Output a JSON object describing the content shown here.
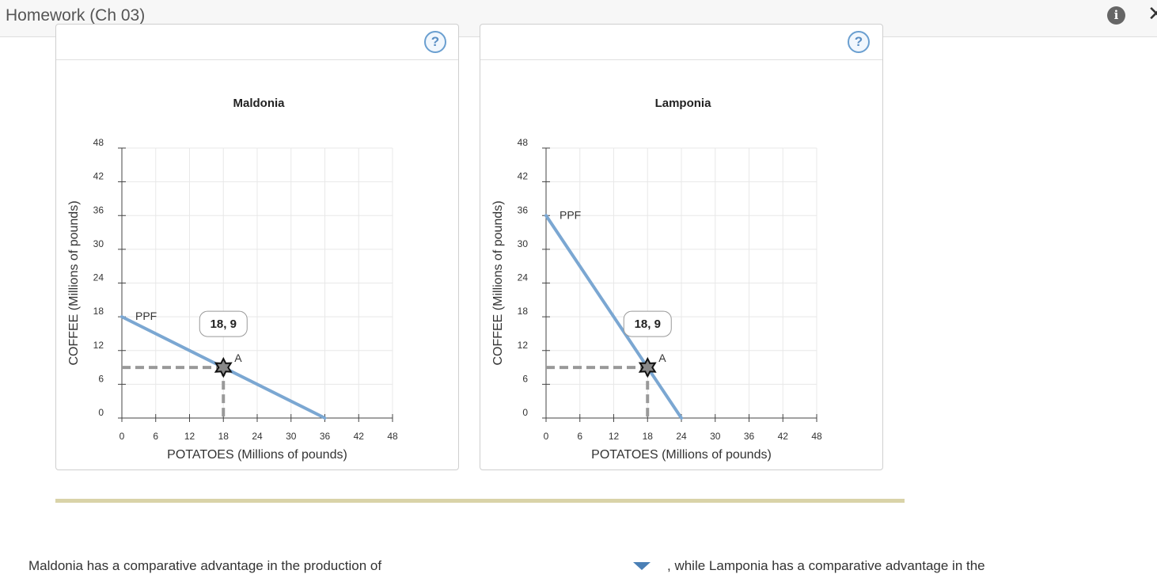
{
  "app": {
    "title": "Homework (Ch 03)"
  },
  "toolbar": {
    "info_icon": "info-icon",
    "close_icon": "close-icon"
  },
  "panels": [
    {
      "help_label": "?"
    },
    {
      "help_label": "?"
    }
  ],
  "chart_data": [
    {
      "type": "line",
      "title": "Maldonia",
      "xlabel": "POTATOES (Millions of pounds)",
      "ylabel": "COFFEE (Millions of pounds)",
      "xlim": [
        0,
        48
      ],
      "ylim": [
        0,
        48
      ],
      "xticks": [
        0,
        6,
        12,
        18,
        24,
        30,
        36,
        42,
        48
      ],
      "yticks": [
        0,
        6,
        12,
        18,
        24,
        30,
        36,
        42,
        48
      ],
      "grid": true,
      "series": [
        {
          "name": "PPF",
          "x": [
            0,
            36
          ],
          "y": [
            18,
            0
          ],
          "color": "#7ba7d2"
        }
      ],
      "point": {
        "label": "A",
        "x": 18,
        "y": 9,
        "tooltip": "18, 9"
      }
    },
    {
      "type": "line",
      "title": "Lamponia",
      "xlabel": "POTATOES (Millions of pounds)",
      "ylabel": "COFFEE (Millions of pounds)",
      "xlim": [
        0,
        48
      ],
      "ylim": [
        0,
        48
      ],
      "xticks": [
        0,
        6,
        12,
        18,
        24,
        30,
        36,
        42,
        48
      ],
      "yticks": [
        0,
        6,
        12,
        18,
        24,
        30,
        36,
        42,
        48
      ],
      "grid": true,
      "series": [
        {
          "name": "PPF",
          "x": [
            0,
            24
          ],
          "y": [
            36,
            0
          ],
          "color": "#7ba7d2"
        }
      ],
      "point": {
        "label": "A",
        "x": 18,
        "y": 9,
        "tooltip": "18, 9"
      }
    }
  ],
  "question": {
    "part1": "Maldonia has a comparative advantage in the production of",
    "part2": ", while Lamponia has a comparative advantage in the"
  }
}
